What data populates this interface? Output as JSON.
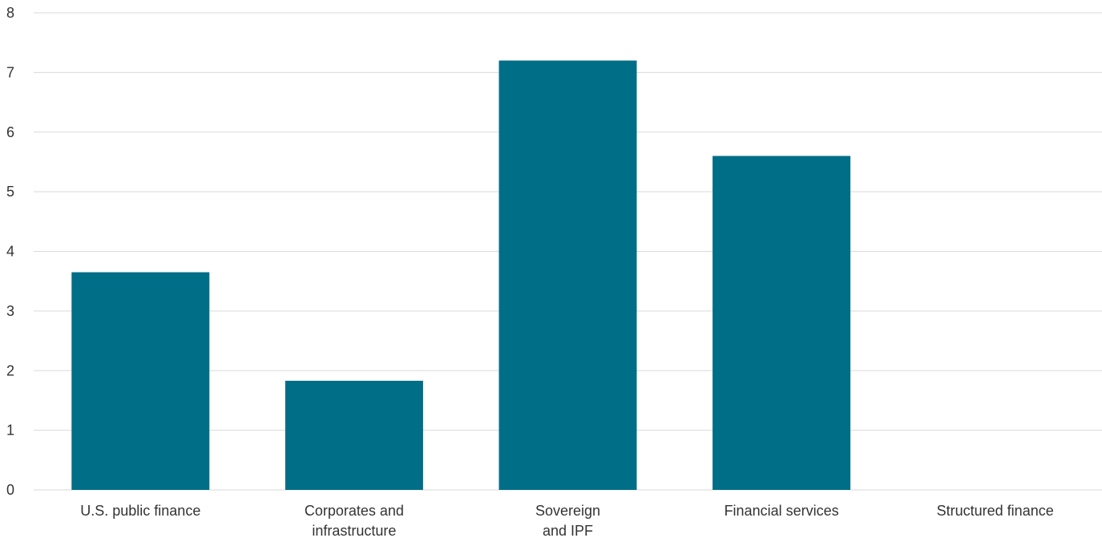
{
  "chart_data": {
    "type": "bar",
    "categories": [
      [
        "U.S. public finance"
      ],
      [
        "Corporates and",
        "infrastructure"
      ],
      [
        "Sovereign",
        "and IPF"
      ],
      [
        "Financial services"
      ],
      [
        "Structured finance"
      ]
    ],
    "values": [
      3.65,
      1.83,
      7.2,
      5.6,
      0
    ],
    "ylim": [
      0,
      8
    ],
    "yticks": [
      "0",
      "1",
      "2",
      "3",
      "4",
      "5",
      "6",
      "7",
      "8"
    ],
    "grid": true,
    "colors": {
      "bar": "#006e87",
      "grid": "#d9d9d9",
      "text": "#333333"
    }
  }
}
